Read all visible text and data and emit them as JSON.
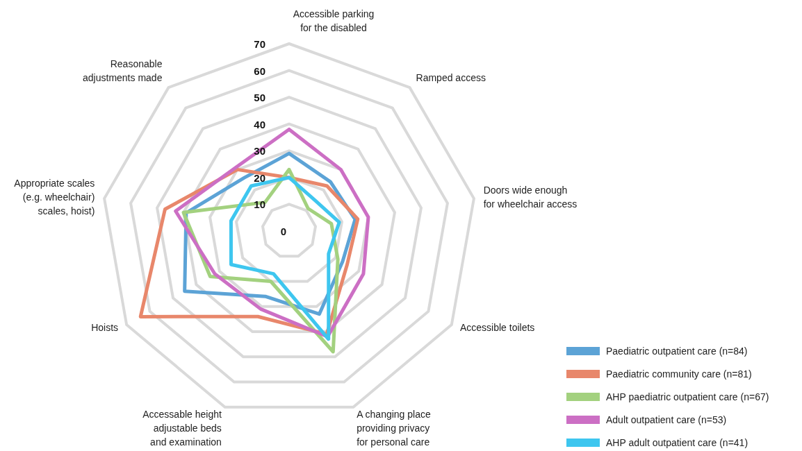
{
  "chart_data": {
    "type": "radar",
    "categories": [
      "Accessible parking\nfor the disabled",
      "Ramped access",
      "Doors wide enough\nfor wheelchair access",
      "Accessible toilets",
      "A changing place\nproviding privacy\nfor personal care",
      "Accessable height\nadjustable beds\nand examination",
      "Hoists",
      "Appropriate scales\n(e.g. wheelchair)\nscales, hoist)",
      "Reasonable\nadjustments made"
    ],
    "series": [
      {
        "name": "Paediatric outpatient care (n=84)",
        "color": "#5ca3d6",
        "values": [
          29,
          24,
          25,
          23,
          33,
          26,
          45,
          39,
          26
        ]
      },
      {
        "name": "Paediatric community care (n=81)",
        "color": "#e8876b",
        "values": [
          20,
          22,
          26,
          25,
          41,
          34,
          64,
          47,
          30
        ]
      },
      {
        "name": "AHP paediatric outpatient care (n=67)",
        "color": "#a3d17f",
        "values": [
          23,
          11,
          16,
          21,
          48,
          20,
          34,
          40,
          14
        ]
      },
      {
        "name": "Adult outpatient care (n=53)",
        "color": "#cc6fc4",
        "values": [
          38,
          30,
          30,
          32,
          42,
          31,
          32,
          43,
          31
        ]
      },
      {
        "name": "AHP adult outpatient care (n=41)",
        "color": "#3ec6ef",
        "values": [
          20,
          15,
          19,
          17,
          43,
          17,
          25,
          22,
          22
        ]
      }
    ],
    "ylim": [
      0,
      70
    ],
    "yticks": [
      0,
      10,
      20,
      30,
      40,
      50,
      60,
      70
    ],
    "grid": true,
    "legend": "bottom right"
  }
}
